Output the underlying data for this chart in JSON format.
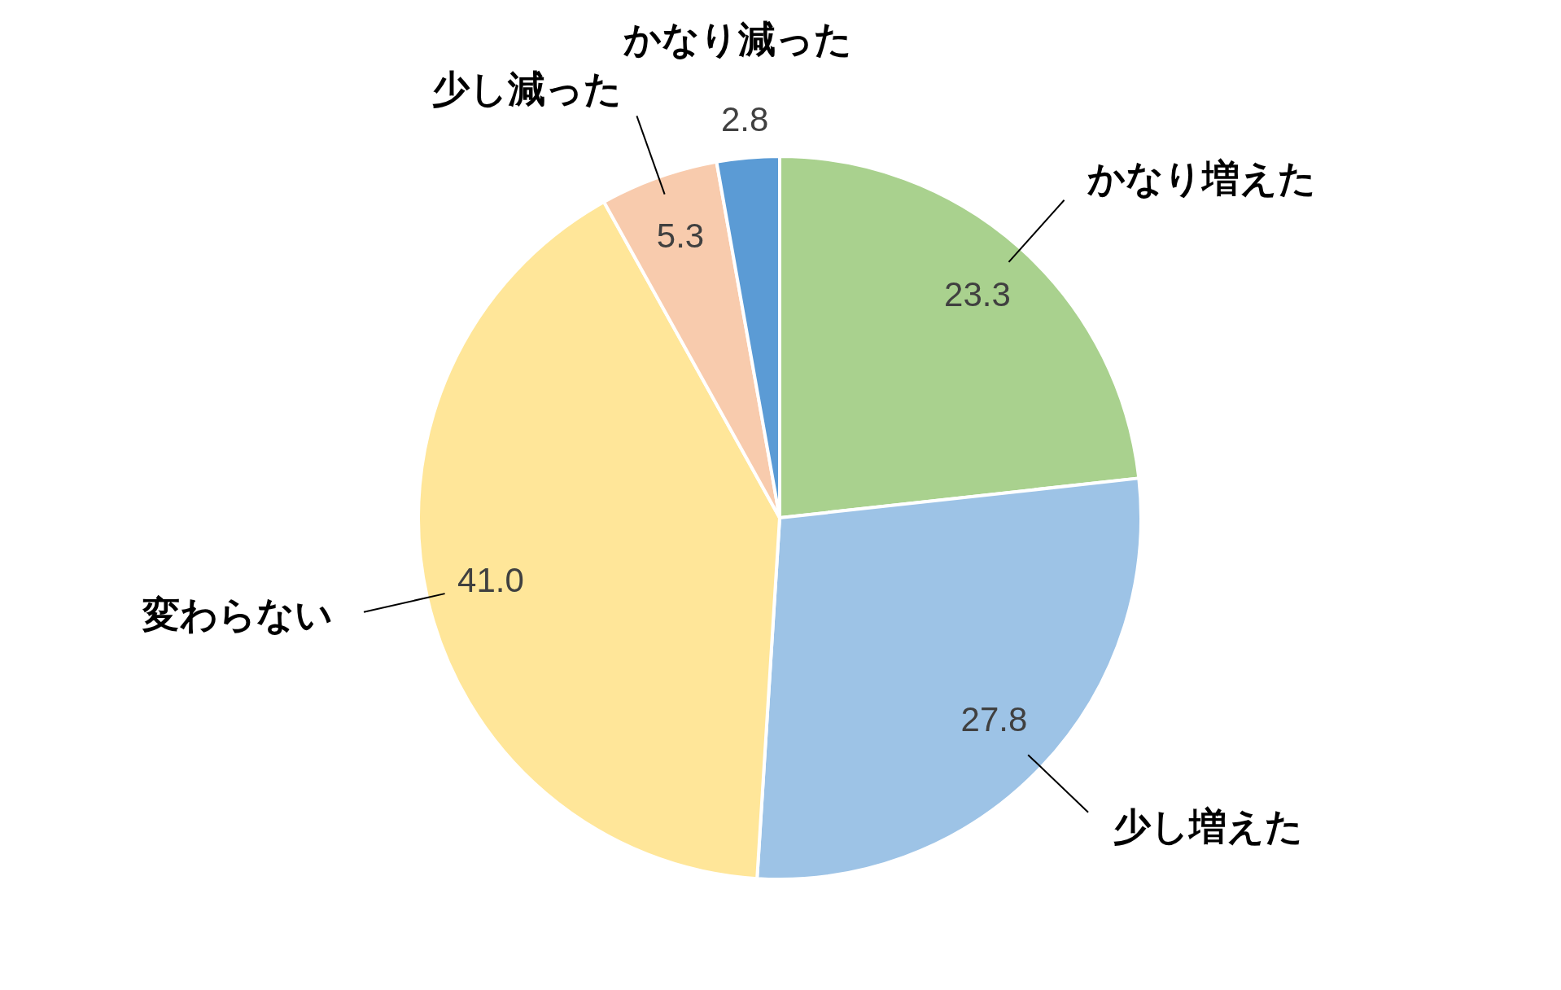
{
  "chart_data": {
    "type": "pie",
    "categories": [
      "かなり増えた",
      "少し増えた",
      "変わらない",
      "少し減った",
      "かなり減った"
    ],
    "values": [
      23.3,
      27.8,
      41.0,
      5.3,
      2.8
    ],
    "colors": [
      "#a9d18e",
      "#9dc3e6",
      "#ffe699",
      "#f8cbad",
      "#5b9bd5"
    ],
    "value_labels": [
      "23.3",
      "27.8",
      "41.0",
      "5.3",
      "2.8"
    ]
  }
}
